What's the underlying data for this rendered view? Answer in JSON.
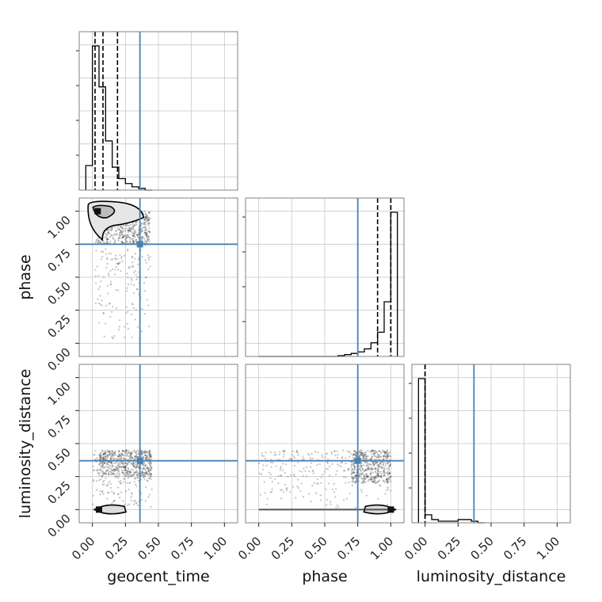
{
  "chart_data": {
    "type": "corner",
    "parameters": [
      "geocent_time",
      "phase",
      "luminosity_distance"
    ],
    "ticks": [
      0.0,
      0.25,
      0.5,
      0.75,
      1.0
    ],
    "tick_labels": [
      "0.00",
      "0.25",
      "0.50",
      "0.75",
      "1.00"
    ],
    "axis_range": [
      -0.1,
      1.1
    ],
    "grid": true,
    "truth": {
      "geocent_time": 0.36,
      "phase": 0.75,
      "luminosity_distance": 0.37
    },
    "truth_color": "#4682b4",
    "histograms": {
      "geocent_time": {
        "bin_edges": [
          -0.05,
          0.0,
          0.05,
          0.1,
          0.15,
          0.2,
          0.25,
          0.3,
          0.35,
          0.4,
          0.45
        ],
        "counts": [
          0.15,
          0.88,
          0.63,
          0.3,
          0.14,
          0.07,
          0.04,
          0.02,
          0.01,
          0.0
        ],
        "quantiles": [
          0.02,
          0.08,
          0.19
        ]
      },
      "phase": {
        "bin_edges": [
          0.0,
          0.05,
          0.1,
          0.15,
          0.2,
          0.25,
          0.3,
          0.35,
          0.4,
          0.45,
          0.5,
          0.55,
          0.6,
          0.65,
          0.7,
          0.75,
          0.8,
          0.85,
          0.9,
          0.95,
          1.0,
          1.05
        ],
        "counts": [
          0.0,
          0.0,
          0.0,
          0.0,
          0.0,
          0.0,
          0.0,
          0.0,
          0.0,
          0.0,
          0.0,
          0.0,
          0.005,
          0.012,
          0.02,
          0.03,
          0.05,
          0.09,
          0.16,
          0.36,
          0.95
        ],
        "quantiles": [
          0.9,
          1.0,
          1.0
        ]
      },
      "luminosity_distance": {
        "bin_edges": [
          -0.05,
          0.0,
          0.05,
          0.1,
          0.15,
          0.2,
          0.25,
          0.3,
          0.35,
          0.4,
          0.45
        ],
        "counts": [
          0.9,
          0.05,
          0.02,
          0.01,
          0.01,
          0.01,
          0.02,
          0.02,
          0.01,
          0.0
        ],
        "quantiles": [
          0.0,
          0.0,
          0.0
        ]
      }
    },
    "scatter": {
      "phase_vs_geocent_time": {
        "x_range": [
          0.02,
          0.44
        ],
        "y_range": [
          0.0,
          1.0
        ],
        "dense_x_range": [
          0.04,
          0.44
        ],
        "dense_y_range": [
          0.75,
          1.0
        ],
        "peak": [
          0.04,
          1.0
        ]
      },
      "luminosity_distance_vs_geocent_time": {
        "x_range": [
          0.0,
          0.45
        ],
        "y_range": [
          0.0,
          0.45
        ],
        "dense_x_range": [
          0.05,
          0.45
        ],
        "dense_y_range": [
          0.25,
          0.45
        ],
        "peak": [
          0.05,
          0.0
        ]
      },
      "luminosity_distance_vs_phase": {
        "x_range": [
          0.0,
          1.0
        ],
        "y_range": [
          0.0,
          0.45
        ],
        "dense_x_range": [
          0.7,
          1.0
        ],
        "dense_y_range": [
          0.2,
          0.45
        ],
        "peak": [
          1.0,
          0.0
        ]
      }
    }
  }
}
